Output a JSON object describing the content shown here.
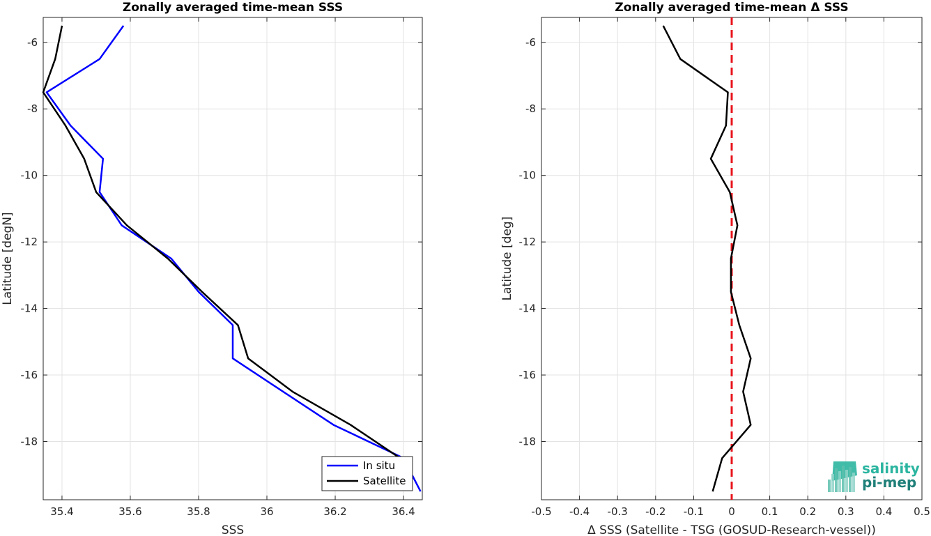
{
  "chart_data": [
    {
      "type": "line",
      "title": "Zonally averaged time-mean SSS",
      "xlabel": "SSS",
      "ylabel": "Latitude [degN]",
      "xlim": [
        35.345,
        36.455
      ],
      "ylim": [
        -19.75,
        -5.25
      ],
      "xticks": [
        35.4,
        35.6,
        35.8,
        36.0,
        36.2,
        36.4
      ],
      "xtick_labels": [
        "35.4",
        "35.6",
        "35.8",
        "36",
        "36.2",
        "36.4"
      ],
      "yticks": [
        -6,
        -8,
        -10,
        -12,
        -14,
        -16,
        -18
      ],
      "ytick_labels": [
        "-6",
        "-8",
        "-10",
        "-12",
        "-14",
        "-16",
        "-18"
      ],
      "grid": true,
      "legend_position": "bottom-right",
      "series": [
        {
          "name": "In situ",
          "color": "#0000ff",
          "x": [
            35.58,
            35.51,
            35.355,
            35.425,
            35.52,
            35.51,
            35.575,
            35.72,
            35.8,
            35.9,
            35.9,
            36.195,
            36.4,
            36.45
          ],
          "y": [
            -5.5,
            -6.5,
            -7.5,
            -8.5,
            -9.5,
            -10.5,
            -11.5,
            -12.5,
            -13.5,
            -14.5,
            -15.5,
            -17.5,
            -18.5,
            -19.5
          ]
        },
        {
          "name": "Satellite",
          "color": "#000000",
          "x": [
            35.4,
            35.38,
            35.345,
            35.41,
            35.465,
            35.5,
            35.59,
            35.71,
            35.81,
            35.915,
            35.945,
            36.075,
            36.245,
            36.39
          ],
          "y": [
            -5.5,
            -6.5,
            -7.5,
            -8.5,
            -9.5,
            -10.5,
            -11.5,
            -12.5,
            -13.5,
            -14.5,
            -15.5,
            -16.5,
            -17.5,
            -18.5
          ]
        }
      ]
    },
    {
      "type": "line",
      "title": "Zonally averaged time-mean Δ SSS",
      "xlabel": "Δ SSS (Satellite - TSG (GOSUD-Research-vessel))",
      "ylabel": "Latitude [deg]",
      "xlim": [
        -0.5,
        0.5
      ],
      "ylim": [
        -19.75,
        -5.25
      ],
      "xticks": [
        -0.5,
        -0.4,
        -0.3,
        -0.2,
        -0.1,
        0,
        0.1,
        0.2,
        0.3,
        0.4,
        0.5
      ],
      "xtick_labels": [
        "-0.5",
        "-0.4",
        "-0.3",
        "-0.2",
        "-0.1",
        "0",
        "0.1",
        "0.2",
        "0.3",
        "0.4",
        "0.5"
      ],
      "yticks": [
        -6,
        -8,
        -10,
        -12,
        -14,
        -16,
        -18
      ],
      "ytick_labels": [
        "-6",
        "-8",
        "-10",
        "-12",
        "-14",
        "-16",
        "-18"
      ],
      "grid": true,
      "reference_line": {
        "x": 0,
        "color": "#e8141c",
        "style": "dashed"
      },
      "series": [
        {
          "color": "#000000",
          "x": [
            -0.18,
            -0.135,
            -0.01,
            -0.015,
            -0.055,
            -0.005,
            0.015,
            -0.002,
            -0.002,
            0.02,
            0.05,
            0.03,
            0.05,
            -0.025,
            -0.05
          ],
          "y": [
            -5.5,
            -6.5,
            -7.5,
            -8.5,
            -9.5,
            -10.5,
            -11.5,
            -12.5,
            -13.5,
            -14.5,
            -15.5,
            -16.5,
            -17.5,
            -18.5,
            -19.5
          ]
        }
      ]
    }
  ],
  "logo": {
    "line1": "salinity",
    "line2": "pi-mep",
    "color1": "#2bb5a0",
    "color2": "#1f7f79"
  }
}
